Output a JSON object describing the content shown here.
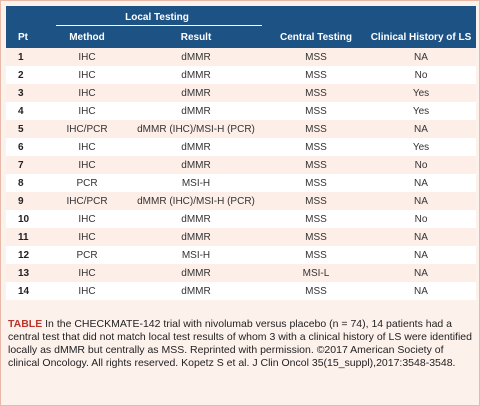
{
  "table": {
    "group_header": "Local Testing",
    "columns": [
      "Pt",
      "Method",
      "Result",
      "Central Testing",
      "Clinical History of LS"
    ],
    "rows": [
      [
        "1",
        "IHC",
        "dMMR",
        "MSS",
        "NA"
      ],
      [
        "2",
        "IHC",
        "dMMR",
        "MSS",
        "No"
      ],
      [
        "3",
        "IHC",
        "dMMR",
        "MSS",
        "Yes"
      ],
      [
        "4",
        "IHC",
        "dMMR",
        "MSS",
        "Yes"
      ],
      [
        "5",
        "IHC/PCR",
        "dMMR (IHC)/MSI-H (PCR)",
        "MSS",
        "NA"
      ],
      [
        "6",
        "IHC",
        "dMMR",
        "MSS",
        "Yes"
      ],
      [
        "7",
        "IHC",
        "dMMR",
        "MSS",
        "No"
      ],
      [
        "8",
        "PCR",
        "MSI-H",
        "MSS",
        "NA"
      ],
      [
        "9",
        "IHC/PCR",
        "dMMR (IHC)/MSI-H (PCR)",
        "MSS",
        "NA"
      ],
      [
        "10",
        "IHC",
        "dMMR",
        "MSS",
        "No"
      ],
      [
        "11",
        "IHC",
        "dMMR",
        "MSS",
        "NA"
      ],
      [
        "12",
        "PCR",
        "MSI-H",
        "MSS",
        "NA"
      ],
      [
        "13",
        "IHC",
        "dMMR",
        "MSI-L",
        "NA"
      ],
      [
        "14",
        "IHC",
        "dMMR",
        "MSS",
        "NA"
      ]
    ]
  },
  "caption": {
    "label": "TABLE",
    "text": "In the CHECKMATE-142 trial with nivolumab versus placebo (n = 74), 14 patients had a central test that did not match local test results of whom 3 with a clinical history of LS were identified locally as dMMR but centrally as MSS. Reprinted with permission. ©2017 American Society of clinical Oncology. All rights reserved. Kopetz S et al. J Clin Oncol 35(15_suppl),2017:3548-3548."
  },
  "colors": {
    "header_bg": "#1d5284",
    "caption_label": "#b8362c",
    "stripe": "#fdeee8"
  }
}
